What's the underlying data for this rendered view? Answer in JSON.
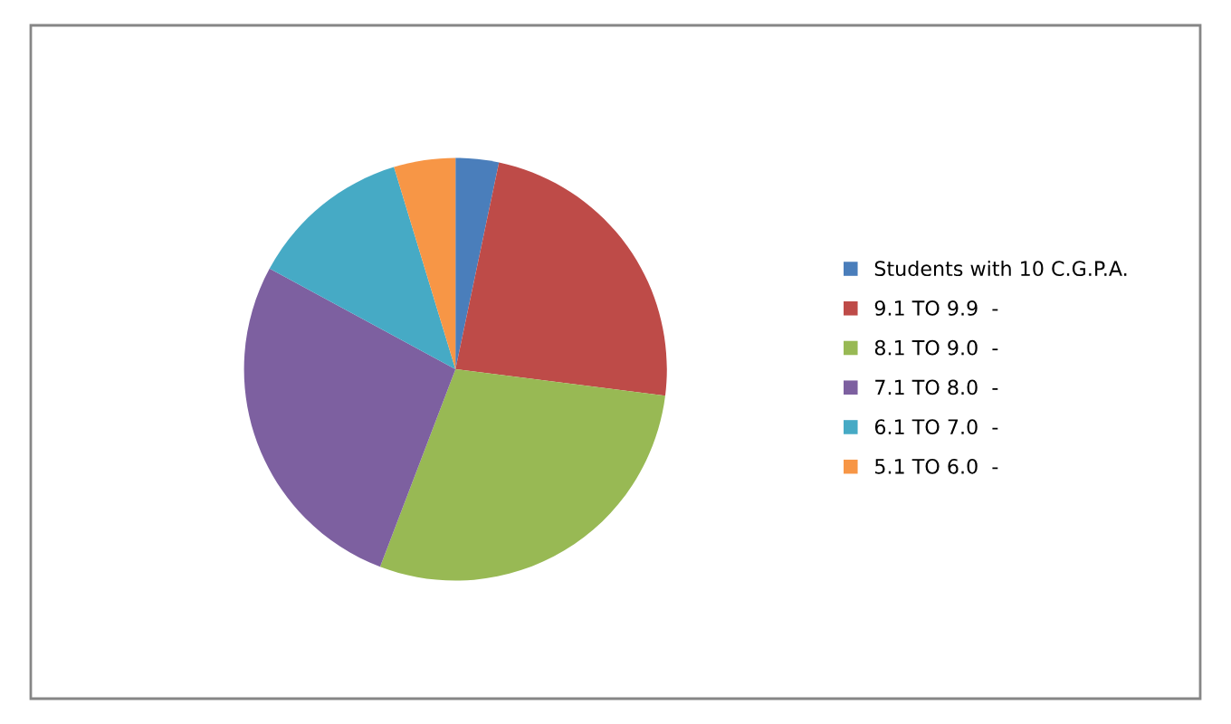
{
  "chart_data": {
    "type": "pie",
    "categories": [
      "Students with 10 C.G.P.A.",
      "9.1 TO 9.9  -",
      "8.1 TO 9.0  -",
      "7.1 TO 8.0  -",
      "6.1 TO 7.0  -",
      "5.1 TO 6.0  -"
    ],
    "values": [
      3.3,
      23.7,
      28.8,
      27.1,
      12.4,
      4.7
    ],
    "colors": [
      "#4a7ebb",
      "#be4b48",
      "#98b954",
      "#7d60a0",
      "#46aac5",
      "#f79646"
    ],
    "legend": "right"
  }
}
